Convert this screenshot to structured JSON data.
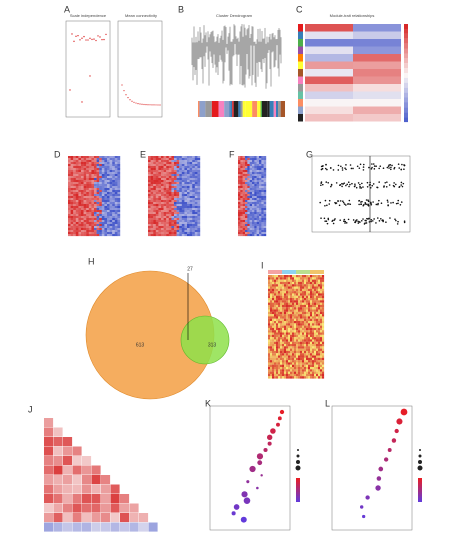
{
  "panels": {
    "A": {
      "label": "A",
      "titles": [
        "Scale independence",
        "Mean connectivity"
      ]
    },
    "B": {
      "label": "B",
      "title": "Cluster Dendrogram"
    },
    "C": {
      "label": "C",
      "title": "Module-trait relationships"
    },
    "D": {
      "label": "D"
    },
    "E": {
      "label": "E"
    },
    "F": {
      "label": "F"
    },
    "G": {
      "label": "G"
    },
    "H": {
      "label": "H",
      "shared": 27,
      "left": 613,
      "right": 313
    },
    "I": {
      "label": "I"
    },
    "J": {
      "label": "J"
    },
    "K": {
      "label": "K"
    },
    "L": {
      "label": "L"
    }
  }
}
